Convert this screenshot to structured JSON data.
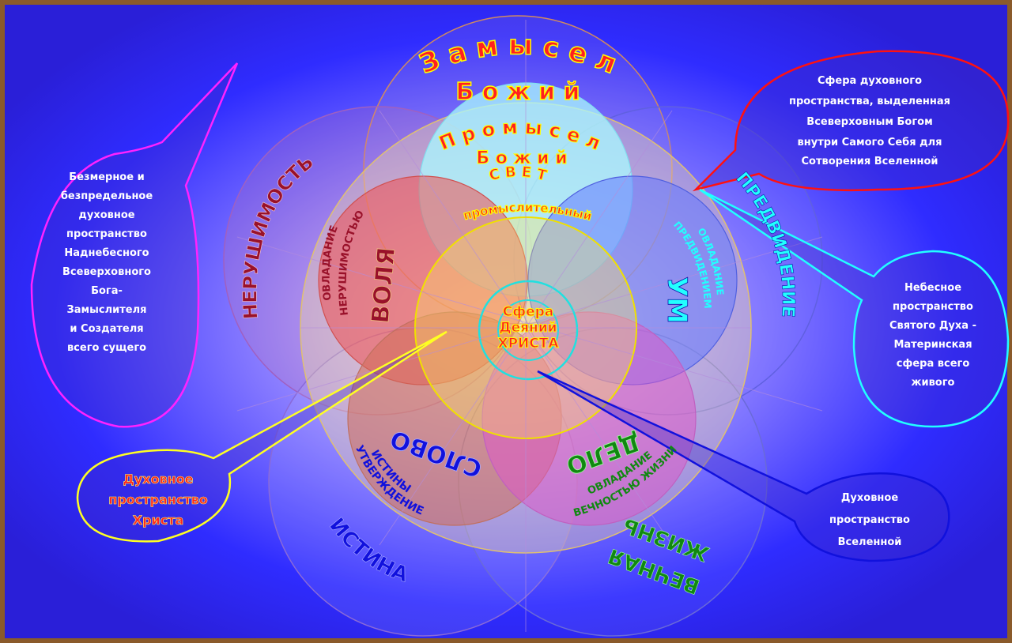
{
  "colors": {
    "background": "#2a2aff",
    "frame": "#8a5a2a",
    "magenta": "#ff22ff",
    "red": "#ff1111",
    "cyan": "#22ffff",
    "yellow": "#ffff22",
    "blue": "#1111dd",
    "green": "#118811",
    "crimson": "#99112a"
  },
  "labels": {
    "zamysel": "З а м ы с е л",
    "bozhiy": "Б о ж и й",
    "promysel": "П р о м ы с е л",
    "promysel_bozhiy": "Б о ж и й",
    "svet": "С В Е Т",
    "promyslitelny": "промыслительный",
    "center_1": "Сфера",
    "center_2": "Деяний",
    "center_3": "ХРИСТА",
    "volya": "ВОЛЯ",
    "ovladanie_1": "ОВЛАДАНИЕ",
    "ovladanie_1b": "НЕРУШИМОСТЬЮ",
    "nerushimost": "НЕРУШИМОСТЬ",
    "um": "УМ",
    "predvidenie": "ПРЕДВИДЕНИЕ",
    "ovladanie_2": "ОВЛАДАНИЕ",
    "ovladanie_2b": "ПРЕДВИДЕНИЕМ",
    "slovo": "СЛОВО",
    "utverzhdenie": "УТВЕРЖДЕНИЕ",
    "istiny": "ИСТИНЫ",
    "istina": "ИСТИНА",
    "delo": "ДЕЛО",
    "ovladanie_3": "ОВЛАДАНИЕ",
    "vechnostyu": "ВЕЧНОСТЬЮ ЖИЗНИ",
    "vechnaya": "ВЕЧНАЯ",
    "zhizn": "ЖИЗНЬ"
  },
  "callouts": {
    "left": [
      "Безмерное и",
      "безпредельное",
      "духовное",
      "пространство",
      "Наднебесного",
      "Всеверховного",
      "Бога-",
      "Замыслителя",
      "и Создателя",
      "всего сущего"
    ],
    "top_right": [
      "Сфера  духовного",
      "пространства, выделенная",
      "Всеверховным  Богом",
      "внутри Самого Себя для",
      "Сотворения  Вселенной"
    ],
    "right": [
      "Небесное",
      "пространство",
      "Святого Духа -",
      "Материнская",
      "сфера всего",
      "живого"
    ],
    "bottom_left": [
      "Духовное",
      "пространство",
      "Христа"
    ],
    "bottom_right": [
      "Духовное",
      "пространство",
      "Вселенной"
    ]
  }
}
